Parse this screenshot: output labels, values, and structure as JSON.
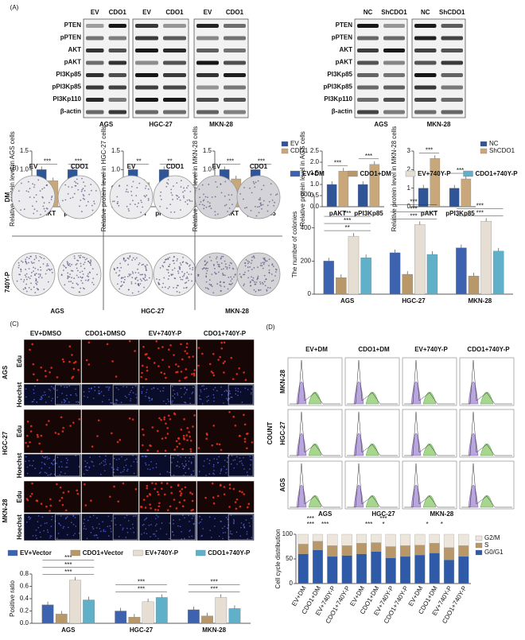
{
  "panel_a": {
    "label": "(A)",
    "blot_left": {
      "headers": [
        "EV",
        "CDO1",
        "EV",
        "CDO1",
        "EV",
        "CDO1"
      ],
      "proteins": [
        "PTEN",
        "pPTEN",
        "AKT",
        "pAKT",
        "PI3Kp85",
        "pPI3Kp85",
        "PI3Kp110",
        "β-actin"
      ],
      "cell_lines": [
        "AGS",
        "HGC-27",
        "MKN-28"
      ]
    },
    "blot_right": {
      "headers": [
        "NC",
        "ShCDO1",
        "NC",
        "ShCDO1"
      ],
      "proteins": [
        "PTEN",
        "pPTEN",
        "AKT",
        "pAKT",
        "PI3Kp85",
        "pPI3Kp85",
        "PI3Kp110",
        "β-actin"
      ],
      "cell_lines": [
        "AGS",
        "MKN-28"
      ]
    },
    "charts": [
      {
        "type": "bar",
        "ylabel": "Relative protein level in AGS cells",
        "categories": [
          "pAKT",
          "pPI3Kp85"
        ],
        "series": [
          {
            "name": "EV",
            "color": "#2f5597",
            "values": [
              1.0,
              1.0
            ]
          },
          {
            "name": "CDO1",
            "color": "#c8a87a",
            "values": [
              0.7,
              0.65
            ]
          }
        ],
        "ylim": [
          0,
          1.5
        ],
        "yticks": [
          {
            "value": 0,
            "label": "0.0"
          },
          {
            "value": 0.5,
            "label": "0.5"
          },
          {
            "value": 1,
            "label": "1.0"
          },
          {
            "value": 1.5,
            "label": "1.5"
          }
        ],
        "significance": [
          [
            "***"
          ],
          [
            "***"
          ]
        ],
        "legend": "none"
      },
      {
        "type": "bar",
        "ylabel": "Relative protein level in HGC-27 cells",
        "categories": [
          "pAKT",
          "pPI3Kp85"
        ],
        "series": [
          {
            "name": "EV",
            "color": "#2f5597",
            "values": [
              1.0,
              1.0
            ]
          },
          {
            "name": "CDO1",
            "color": "#c8a87a",
            "values": [
              0.65,
              0.7
            ]
          }
        ],
        "ylim": [
          0,
          1.5
        ],
        "yticks": [
          {
            "value": 0,
            "label": "0.0"
          },
          {
            "value": 0.5,
            "label": "0.5"
          },
          {
            "value": 1,
            "label": "1.0"
          },
          {
            "value": 1.5,
            "label": "1.5"
          }
        ],
        "significance": [
          [
            "**"
          ],
          [
            "**"
          ]
        ],
        "legend": "none"
      },
      {
        "type": "bar",
        "ylabel": "Relative protein level in MKN-28 cells",
        "categories": [
          "pAKT",
          "pPI3Kp85"
        ],
        "series": [
          {
            "name": "EV",
            "color": "#2f5597",
            "values": [
              1.0,
              1.0
            ]
          },
          {
            "name": "CDO1",
            "color": "#c8a87a",
            "values": [
              0.75,
              0.7
            ]
          }
        ],
        "ylim": [
          0,
          1.5
        ],
        "yticks": [
          {
            "value": 0,
            "label": "0.0"
          },
          {
            "value": 0.5,
            "label": "0.5"
          },
          {
            "value": 1,
            "label": "1.0"
          },
          {
            "value": 1.5,
            "label": "1.5"
          }
        ],
        "significance": [
          [
            "***"
          ],
          [
            "***"
          ]
        ],
        "legend": "right"
      },
      {
        "type": "bar",
        "ylabel": "Relative protein level in AGS cells",
        "categories": [
          "pAKT",
          "pPI3Kp85"
        ],
        "series": [
          {
            "name": "NC",
            "color": "#2f5597",
            "values": [
              1.0,
              1.0
            ]
          },
          {
            "name": "ShCDO1",
            "color": "#c8a87a",
            "values": [
              1.6,
              1.9
            ]
          }
        ],
        "ylim": [
          0,
          2.5
        ],
        "yticks": [
          {
            "value": 0,
            "label": "0.0"
          },
          {
            "value": 0.5,
            "label": "0.5"
          },
          {
            "value": 1,
            "label": "1.0"
          },
          {
            "value": 1.5,
            "label": "1.5"
          },
          {
            "value": 2,
            "label": "2.0"
          },
          {
            "value": 2.5,
            "label": "2.5"
          }
        ],
        "significance": [
          [
            "***"
          ],
          [
            "***"
          ]
        ],
        "legend": "none"
      },
      {
        "type": "bar",
        "ylabel": "Relative protein level in MKN-28 cells",
        "categories": [
          "pAKT",
          "pPI3Kp85"
        ],
        "series": [
          {
            "name": "NC",
            "color": "#2f5597",
            "values": [
              1.0,
              1.0
            ]
          },
          {
            "name": "ShCDO1",
            "color": "#c8a87a",
            "values": [
              2.6,
              1.5
            ]
          }
        ],
        "ylim": [
          0,
          3
        ],
        "yticks": [
          0,
          1,
          2,
          3
        ],
        "significance": [
          [
            "***"
          ],
          [
            "***"
          ]
        ],
        "legend": "right"
      }
    ]
  },
  "panel_b": {
    "label": "(B)",
    "headers": [
      "EV",
      "CDO1",
      "EV",
      "CDO1",
      "EV",
      "CDO1"
    ],
    "rows": [
      "DM",
      "740Y-P"
    ],
    "cell_lines": [
      "AGS",
      "HGC-27",
      "MKN-28"
    ],
    "chart": {
      "type": "bar",
      "ylabel": "The number of colonies",
      "categories": [
        "AGS",
        "HGC-27",
        "MKN-28"
      ],
      "series": [
        {
          "name": "EV+DM",
          "color": "#3d63b0",
          "values": [
            200,
            250,
            280
          ]
        },
        {
          "name": "CDO1+DM",
          "color": "#b89868",
          "values": [
            100,
            120,
            110
          ]
        },
        {
          "name": "EV+740Y-P",
          "color": "#e6ded2",
          "values": [
            350,
            420,
            440
          ]
        },
        {
          "name": "CDO1+740Y-P",
          "color": "#5fb0c8",
          "values": [
            220,
            240,
            260
          ]
        }
      ],
      "ylim": [
        0,
        600
      ],
      "yticks": [
        0,
        200,
        400,
        600
      ],
      "significance": [
        [
          "**",
          "***",
          "***"
        ],
        [
          "***",
          "***",
          "***"
        ],
        [
          "***",
          "***"
        ]
      ],
      "legend": "top"
    }
  },
  "panel_c": {
    "label": "(C)",
    "headers": [
      "EV+DMSO",
      "CDO1+DMSO",
      "EV+740Y-P",
      "CDO1+740Y-P"
    ],
    "cell_lines": [
      "AGS",
      "HGC-27",
      "MKN-28"
    ],
    "stains": [
      "Edu",
      "Hoechst"
    ],
    "chart": {
      "type": "bar",
      "ylabel": "Positive ratio",
      "categories": [
        "AGS",
        "HGC-27",
        "MKN-28"
      ],
      "series": [
        {
          "name": "EV+Vector",
          "color": "#3d63b0",
          "values": [
            0.3,
            0.2,
            0.22
          ]
        },
        {
          "name": "CDO1+Vector",
          "color": "#b89868",
          "values": [
            0.15,
            0.1,
            0.12
          ]
        },
        {
          "name": "EV+740Y-P",
          "color": "#e6ded2",
          "values": [
            0.7,
            0.35,
            0.42
          ]
        },
        {
          "name": "CDO1+740Y-P",
          "color": "#5fb0c8",
          "values": [
            0.38,
            0.42,
            0.24
          ]
        }
      ],
      "ylim": [
        0,
        0.8
      ],
      "yticks": [
        {
          "value": 0,
          "label": "0.0"
        },
        {
          "value": 0.2,
          "label": "0.2"
        },
        {
          "value": 0.4,
          "label": "0.4"
        },
        {
          "value": 0.6,
          "label": "0.6"
        },
        {
          "value": 0.8,
          "label": "0.8"
        }
      ],
      "significance": [
        [
          "***",
          "***",
          "***"
        ],
        [
          "***",
          "***"
        ],
        [
          "***",
          "***"
        ]
      ],
      "legend": "top"
    }
  },
  "panel_d": {
    "label": "(D)",
    "headers": [
      "EV+DM",
      "CDO1+DM",
      "EV+740Y-P",
      "CDO1+740Y-P"
    ],
    "cell_lines": [
      "MKN-28",
      "HGC-27",
      "AGS"
    ],
    "ylabel": "COUNT",
    "chart": {
      "type": "stacked_bar",
      "ylabel": "Cell cycle distribution",
      "groups": [
        "AGS",
        "HGC-27",
        "MKN-28"
      ],
      "categories": [
        "EV+DM",
        "CDO1+DM",
        "EV+740Y-P",
        "CDO1+740Y-P",
        "EV+DM",
        "CDO1+DM",
        "EV+740Y-P",
        "CDO1+740Y-P",
        "EV+DM",
        "CDO1+DM",
        "EV+740Y-P",
        "CDO1+740Y-P"
      ],
      "series": [
        {
          "name": "G0/G1",
          "color": "#2f5aa8",
          "values": [
            60,
            68,
            55,
            57,
            60,
            65,
            52,
            55,
            58,
            62,
            48,
            55
          ]
        },
        {
          "name": "S",
          "color": "#b89868",
          "values": [
            20,
            18,
            22,
            20,
            22,
            18,
            23,
            22,
            20,
            20,
            25,
            22
          ]
        },
        {
          "name": "G2/M",
          "color": "#ece6dc",
          "values": [
            20,
            14,
            23,
            23,
            18,
            17,
            25,
            23,
            22,
            18,
            27,
            23
          ]
        }
      ],
      "ylim": [
        0,
        100
      ],
      "yticks": [
        0,
        50,
        100
      ],
      "significance": [
        [
          "***",
          "***"
        ],
        [
          "***"
        ],
        [],
        [],
        [
          "***"
        ],
        [
          "*",
          "***"
        ],
        [],
        [],
        [
          "*"
        ],
        [
          "*"
        ],
        [],
        []
      ],
      "legend": "right"
    }
  }
}
